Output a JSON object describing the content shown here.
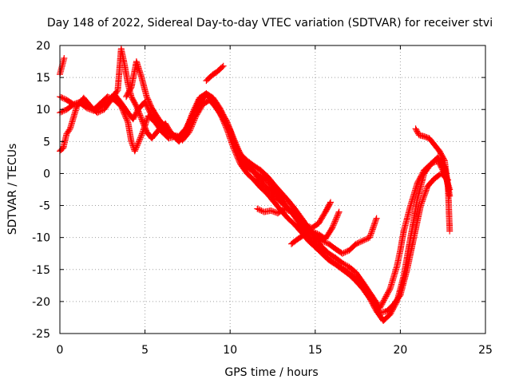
{
  "chart_data": {
    "type": "scatter",
    "title": "Day 148 of 2022, Sidereal Day-to-day VTEC variation (SDTVAR) for receiver stvi",
    "xlabel": "GPS time / hours",
    "ylabel": "SDTVAR / TECUs",
    "xlim": [
      0,
      25
    ],
    "ylim": [
      -25,
      20
    ],
    "xticks": [
      0,
      5,
      10,
      15,
      20,
      25
    ],
    "yticks": [
      -25,
      -20,
      -15,
      -10,
      -5,
      0,
      5,
      10,
      15,
      20
    ],
    "grid": true,
    "marker": "+",
    "color": "#ff0000",
    "series": [
      {
        "x": [
          0.0,
          0.4,
          0.8,
          1.2,
          1.6,
          2.0,
          2.4,
          2.8,
          3.2,
          3.6,
          4.0,
          4.3,
          4.6,
          5.0,
          5.4,
          5.8,
          6.2,
          6.6,
          7.0,
          7.4,
          7.8,
          8.2,
          8.6,
          9.0,
          9.4,
          9.8,
          10.2,
          10.6,
          11.0,
          11.4,
          11.8,
          12.2,
          12.6,
          13.0,
          13.4,
          13.8,
          14.2,
          14.6,
          15.0,
          15.4,
          15.8,
          16.2,
          16.6,
          17.0,
          17.4,
          17.8,
          18.2,
          18.6,
          18.8,
          19.0,
          19.4,
          19.8,
          20.0,
          20.2,
          20.6,
          21.0,
          21.4,
          21.8,
          22.2,
          22.6,
          22.9
        ],
        "y": [
          12.0,
          11.5,
          10.8,
          11.0,
          10.2,
          9.8,
          10.5,
          11.2,
          12.4,
          11.0,
          9.5,
          8.5,
          10.0,
          11.2,
          9.0,
          7.5,
          6.5,
          6.0,
          5.8,
          7.0,
          9.0,
          11.0,
          12.3,
          11.5,
          10.0,
          8.2,
          5.5,
          3.0,
          2.0,
          1.2,
          0.5,
          -0.5,
          -1.8,
          -3.0,
          -4.2,
          -5.5,
          -7.0,
          -8.5,
          -10.2,
          -11.5,
          -12.5,
          -13.2,
          -14.0,
          -14.6,
          -15.5,
          -17.0,
          -18.6,
          -20.2,
          -21.0,
          -20.0,
          -18.0,
          -14.5,
          -12.0,
          -9.0,
          -5.0,
          -1.5,
          0.5,
          1.5,
          2.0,
          0.0,
          -2.5
        ]
      },
      {
        "x": [
          0.0,
          0.4,
          0.8,
          1.2,
          1.6,
          2.0,
          2.4,
          2.8,
          3.2,
          3.6,
          4.0,
          4.2,
          4.4,
          4.8,
          5.2,
          5.6,
          6.0,
          6.4,
          6.8,
          7.2,
          7.6,
          8.0,
          8.4,
          8.8,
          9.2,
          9.6,
          10.0,
          10.4,
          10.8,
          11.2,
          11.6,
          12.0,
          12.4,
          12.8,
          13.2,
          13.6,
          14.0,
          14.4,
          14.8,
          15.2,
          15.6,
          16.0,
          16.4,
          16.8,
          17.2,
          17.6,
          18.0,
          18.4,
          18.8,
          19.2,
          19.6,
          20.0,
          20.4,
          20.8,
          21.2,
          21.6,
          22.0,
          22.4,
          22.8
        ],
        "y": [
          9.5,
          10.0,
          10.8,
          11.2,
          10.5,
          10.0,
          11.0,
          12.0,
          11.5,
          10.5,
          8.0,
          5.0,
          3.5,
          6.0,
          9.0,
          8.0,
          6.5,
          5.5,
          5.8,
          5.2,
          6.5,
          9.0,
          10.8,
          11.5,
          10.2,
          8.5,
          6.8,
          4.0,
          2.2,
          1.0,
          -0.5,
          -1.8,
          -2.8,
          -4.0,
          -5.0,
          -6.0,
          -7.5,
          -9.0,
          -10.5,
          -11.8,
          -13.0,
          -13.8,
          -14.5,
          -15.2,
          -16.0,
          -17.0,
          -18.2,
          -20.0,
          -21.8,
          -21.5,
          -20.5,
          -19.0,
          -15.0,
          -10.0,
          -5.0,
          -2.0,
          -0.8,
          0.0,
          -1.0
        ]
      },
      {
        "x": [
          0.0,
          0.2,
          0.4,
          0.6,
          1.0,
          1.4,
          1.8,
          2.2,
          2.6,
          3.0,
          3.4,
          3.6,
          3.8,
          4.0,
          4.2,
          4.5,
          4.8,
          5.1,
          5.4,
          5.8,
          6.2,
          6.6,
          7.0,
          7.4,
          7.8,
          8.2,
          8.6,
          9.0,
          9.4,
          9.8,
          10.2,
          10.6,
          11.0,
          11.4,
          11.8,
          12.2,
          12.6,
          13.0,
          13.4,
          13.8,
          14.2,
          14.6,
          15.0,
          15.4,
          15.8,
          16.2,
          16.6,
          17.0,
          17.4,
          17.8,
          18.2,
          18.6,
          19.0,
          19.4,
          19.8,
          20.2,
          20.6,
          21.0,
          21.4,
          21.8,
          22.2,
          22.6,
          22.9
        ],
        "y": [
          3.5,
          4.0,
          6.2,
          7.0,
          10.5,
          11.8,
          10.5,
          9.5,
          10.0,
          11.5,
          13.0,
          19.5,
          17.0,
          14.0,
          12.0,
          10.5,
          8.5,
          6.5,
          5.5,
          6.8,
          7.8,
          6.0,
          5.0,
          6.5,
          9.0,
          11.5,
          12.5,
          11.2,
          9.5,
          7.0,
          4.0,
          1.5,
          0.0,
          -1.0,
          -2.2,
          -3.2,
          -4.5,
          -5.8,
          -7.0,
          -8.0,
          -9.2,
          -10.5,
          -11.5,
          -12.5,
          -13.5,
          -14.2,
          -15.0,
          -15.8,
          -16.8,
          -18.0,
          -19.5,
          -21.5,
          -23.0,
          -22.0,
          -20.0,
          -16.0,
          -10.0,
          -4.0,
          0.0,
          1.5,
          2.5,
          1.0,
          -3.5
        ]
      },
      {
        "x": [
          3.9,
          4.2,
          4.5,
          4.8,
          5.1,
          5.4,
          5.8,
          6.2,
          6.6,
          7.0,
          7.4,
          7.8,
          8.2,
          8.6,
          9.0,
          9.4,
          9.8,
          10.2,
          10.6,
          11.0,
          11.4,
          11.8,
          12.2,
          12.6,
          13.0,
          13.4,
          13.8,
          14.2,
          14.6,
          15.0,
          15.4,
          15.8,
          16.2,
          16.6,
          17.0,
          17.4,
          17.8,
          18.2,
          18.6
        ],
        "y": [
          12.0,
          13.5,
          17.5,
          15.0,
          12.0,
          10.2,
          8.5,
          7.2,
          6.2,
          5.2,
          6.8,
          9.5,
          11.8,
          12.5,
          11.8,
          10.2,
          8.0,
          5.0,
          2.5,
          1.0,
          0.2,
          -0.5,
          -1.2,
          -2.5,
          -4.0,
          -5.5,
          -6.2,
          -7.0,
          -8.5,
          -9.8,
          -10.5,
          -11.0,
          -11.8,
          -12.5,
          -12.0,
          -11.0,
          -10.5,
          -10.0,
          -7.0
        ]
      },
      {
        "x": [
          11.6,
          12.0,
          12.4,
          12.8,
          13.2,
          13.6,
          14.0,
          14.4,
          14.8,
          15.2,
          15.6,
          15.9
        ],
        "y": [
          -5.5,
          -6.0,
          -5.8,
          -6.2,
          -5.5,
          -6.0,
          -7.0,
          -8.0,
          -8.5,
          -7.8,
          -6.0,
          -4.5
        ]
      },
      {
        "x": [
          13.6,
          14.0,
          14.4,
          14.8,
          15.2,
          15.6,
          16.0,
          16.4
        ],
        "y": [
          -11.0,
          -10.2,
          -9.5,
          -9.0,
          -9.5,
          -10.2,
          -8.5,
          -6.0
        ]
      },
      {
        "x": [
          20.9,
          21.1,
          21.4,
          21.7,
          22.0,
          22.3,
          22.6,
          22.8,
          22.9
        ],
        "y": [
          7.0,
          6.0,
          5.8,
          5.5,
          4.5,
          3.5,
          2.0,
          -2.0,
          -9.0
        ]
      },
      {
        "x": [
          0.0,
          0.05,
          0.1,
          0.15,
          0.2,
          0.25
        ],
        "y": [
          15.5,
          16.0,
          16.5,
          17.0,
          17.5,
          18.0
        ]
      },
      {
        "x": [
          8.6,
          8.8,
          9.0,
          9.2,
          9.4,
          9.6
        ],
        "y": [
          14.5,
          15.0,
          15.5,
          15.8,
          16.3,
          16.8
        ]
      }
    ]
  }
}
